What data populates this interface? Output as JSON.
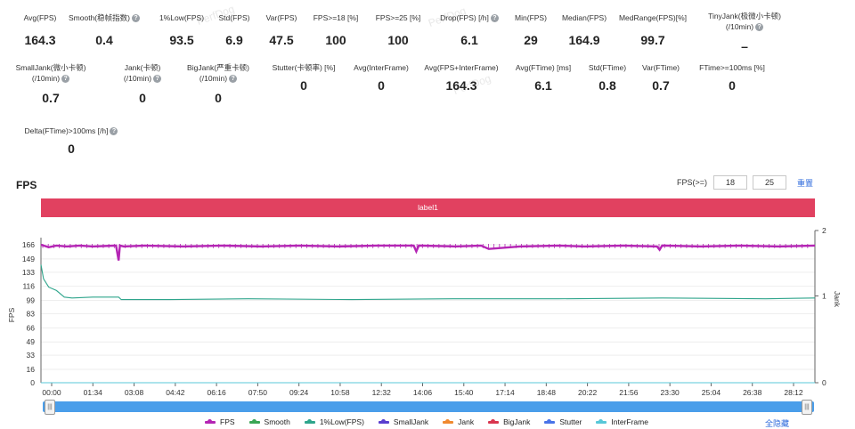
{
  "watermarks": [
    "PerfDog",
    "PerfDog",
    "PerfDog"
  ],
  "metrics_row1": [
    {
      "label": "Avg(FPS)",
      "value": "164.3",
      "help": false
    },
    {
      "label": "Smooth(稳帧指数)",
      "value": "0.4",
      "help": true
    },
    {
      "label": "1%Low(FPS)",
      "value": "93.5",
      "help": false
    },
    {
      "label": "Std(FPS)",
      "value": "6.9",
      "help": false
    },
    {
      "label": "Var(FPS)",
      "value": "47.5",
      "help": false
    },
    {
      "label": "FPS>=18 [%]",
      "value": "100",
      "help": false
    },
    {
      "label": "FPS>=25 [%]",
      "value": "100",
      "help": false
    },
    {
      "label": "Drop(FPS) [/h]",
      "value": "6.1",
      "help": true
    },
    {
      "label": "Min(FPS)",
      "value": "29",
      "help": false
    },
    {
      "label": "Median(FPS)",
      "value": "164.9",
      "help": false
    },
    {
      "label": "MedRange(FPS)[%]",
      "value": "99.7",
      "help": false
    },
    {
      "label": "TinyJank(极微小卡顿)",
      "label2": "(/10min)",
      "value": "–",
      "help": true
    }
  ],
  "metrics_row2": [
    {
      "label": "SmallJank(微小卡顿)",
      "label2": "(/10min)",
      "value": "0.7",
      "help": true
    },
    {
      "label": "Jank(卡顿)",
      "label2": "(/10min)",
      "value": "0",
      "help": true
    },
    {
      "label": "BigJank(严重卡顿)",
      "label2": "(/10min)",
      "value": "0",
      "help": true
    },
    {
      "label": "Stutter(卡顿率) [%]",
      "value": "0",
      "help": false
    },
    {
      "label": "Avg(InterFrame)",
      "value": "0",
      "help": false
    },
    {
      "label": "Avg(FPS+InterFrame)",
      "value": "164.3",
      "help": false
    },
    {
      "label": "Avg(FTime) [ms]",
      "value": "6.1",
      "help": false
    },
    {
      "label": "Std(FTime)",
      "value": "0.8",
      "help": false
    },
    {
      "label": "Var(FTime)",
      "value": "0.7",
      "help": false
    },
    {
      "label": "FTime>=100ms [%]",
      "value": "0",
      "help": false
    }
  ],
  "metrics_row3": [
    {
      "label": "Delta(FTime)>100ms [/h]",
      "value": "0",
      "help": true
    }
  ],
  "section_title": "FPS",
  "threshold": {
    "label": "FPS(>=)",
    "value1": "18",
    "value2": "25",
    "reset_label": "重置"
  },
  "label_bar": "label1",
  "chart_data": {
    "type": "line",
    "y_ticks_left": [
      "166",
      "149",
      "133",
      "116",
      "99",
      "83",
      "66",
      "49",
      "33",
      "16",
      "0"
    ],
    "y_ticks_right": [
      "2",
      "1",
      "0"
    ],
    "ylabel_left": "FPS",
    "ylabel_right": "Jank",
    "x_ticks": [
      "00:00",
      "01:34",
      "03:08",
      "04:42",
      "06:16",
      "07:50",
      "09:24",
      "10:58",
      "12:32",
      "14:06",
      "15:40",
      "17:14",
      "18:48",
      "20:22",
      "21:56",
      "23:30",
      "25:04",
      "26:38",
      "28:12"
    ],
    "ylim_left": [
      0,
      166
    ],
    "ylim_right": [
      0,
      2
    ],
    "series": [
      {
        "name": "FPS",
        "color": "#b425b4",
        "x": [
          0,
          0.3,
          0.6,
          1.0,
          1.5,
          2.0,
          2.9,
          3.0,
          3.05,
          3.2,
          4.0,
          5.5,
          7.0,
          8.5,
          10.0,
          11.5,
          13.0,
          14.4,
          14.5,
          14.6,
          16.0,
          17.0,
          17.3,
          18.5,
          20.0,
          21.0,
          22.5,
          23.8,
          23.9,
          24.0,
          25.5,
          27.0,
          28.5,
          29.9
        ],
        "values": [
          166,
          163,
          165,
          164,
          165,
          164,
          165,
          147,
          165,
          164,
          165,
          164,
          165,
          164,
          165,
          164,
          165,
          165,
          158,
          165,
          164,
          165,
          161,
          164,
          165,
          164,
          165,
          164,
          160,
          165,
          164,
          165,
          164,
          165
        ]
      },
      {
        "name": "Smooth",
        "color": "#3aa655",
        "x": [
          0,
          29.9
        ],
        "values": [
          0,
          0
        ]
      },
      {
        "name": "1%Low(FPS)",
        "color": "#2fa58c",
        "x": [
          0,
          0.1,
          0.3,
          0.6,
          0.9,
          1.2,
          2.0,
          3.0,
          3.1,
          5.0,
          8.0,
          12.0,
          16.0,
          20.0,
          24.0,
          28.0,
          29.9
        ],
        "values": [
          142,
          125,
          115,
          111,
          103,
          102,
          103,
          103,
          100,
          100,
          101,
          100,
          101,
          101,
          102,
          101,
          102
        ]
      },
      {
        "name": "SmallJank",
        "color": "#5a3fcf",
        "x": [
          0,
          29.9
        ],
        "values": [
          0,
          0
        ]
      },
      {
        "name": "Jank",
        "color": "#f08a30",
        "x": [
          0,
          29.9
        ],
        "values": [
          0,
          0
        ]
      },
      {
        "name": "BigJank",
        "color": "#d9364f",
        "x": [
          0,
          29.9
        ],
        "values": [
          0,
          0
        ]
      },
      {
        "name": "Stutter",
        "color": "#4a74e8",
        "x": [
          0,
          29.9
        ],
        "values": [
          0,
          0
        ]
      },
      {
        "name": "InterFrame",
        "color": "#58c8d8",
        "x": [
          0,
          29.9
        ],
        "values": [
          0,
          0
        ]
      }
    ]
  },
  "legend": [
    "FPS",
    "Smooth",
    "1%Low(FPS)",
    "SmallJank",
    "Jank",
    "BigJank",
    "Stutter",
    "InterFrame"
  ],
  "hide_all_label": "全隐藏"
}
